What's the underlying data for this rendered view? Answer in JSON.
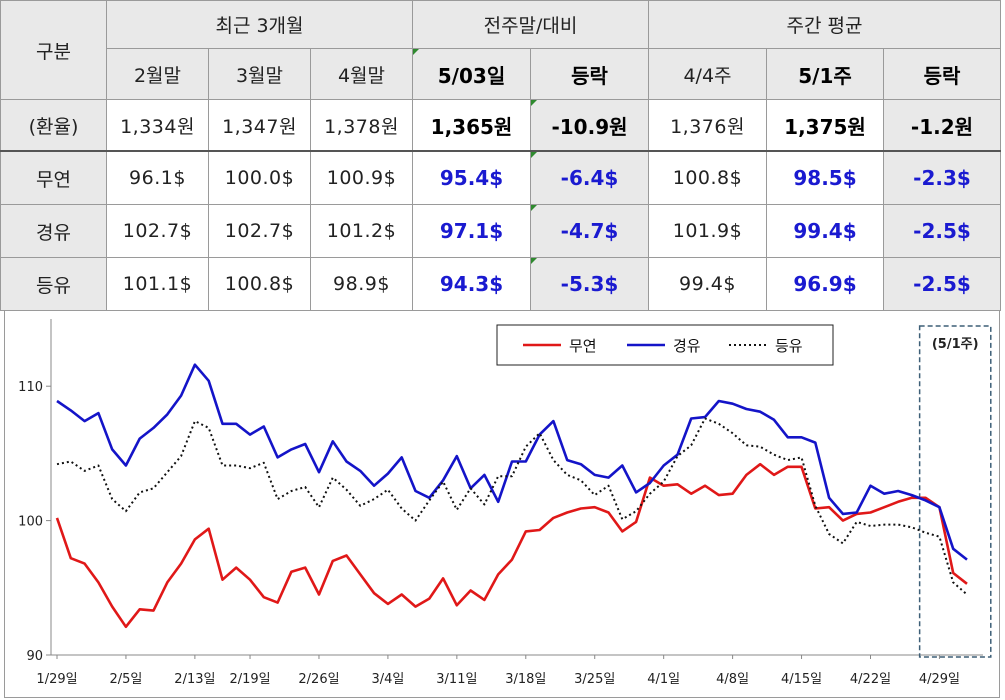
{
  "table": {
    "header_groups": {
      "recent3": "최근 3개월",
      "prev_week": "전주말/대비",
      "weekly_avg": "주간 평균"
    },
    "col_heads": {
      "category": "구분",
      "feb": "2월말",
      "mar": "3월말",
      "apr": "4월말",
      "d0503": "5/03일",
      "change1": "등락",
      "w44": "4/4주",
      "w51": "5/1주",
      "change2": "등락"
    },
    "rows": [
      {
        "label": "(환율)",
        "values": [
          "1,334원",
          "1,347원",
          "1,378원",
          "1,365원",
          "-10.9원",
          "1,376원",
          "1,375원",
          "-1.2원"
        ]
      },
      {
        "label": "무연",
        "values": [
          "96.1$",
          "100.0$",
          "100.9$",
          "95.4$",
          "-6.4$",
          "100.8$",
          "98.5$",
          "-2.3$"
        ]
      },
      {
        "label": "경유",
        "values": [
          "102.7$",
          "102.7$",
          "101.2$",
          "97.1$",
          "-4.7$",
          "101.9$",
          "99.4$",
          "-2.5$"
        ]
      },
      {
        "label": "등유",
        "values": [
          "101.1$",
          "100.8$",
          "98.9$",
          "94.3$",
          "-5.3$",
          "99.4$",
          "96.9$",
          "-2.5$"
        ]
      }
    ]
  },
  "chart_data": {
    "type": "line",
    "ylim": [
      90,
      115
    ],
    "yticks": [
      90,
      100,
      110
    ],
    "xticks": [
      "1/29일",
      "2/5일",
      "2/13일",
      "2/19일",
      "2/26일",
      "3/4일",
      "3/11일",
      "3/18일",
      "3/25일",
      "4/1일",
      "4/8일",
      "4/15일",
      "4/22일",
      "4/29일"
    ],
    "xtick_index": [
      0,
      5,
      10,
      14,
      19,
      24,
      29,
      34,
      39,
      44,
      49,
      54,
      59,
      64
    ],
    "highlight": {
      "label": "(5/1주)",
      "from_index": 63,
      "to_index": 67
    },
    "legend_position": "top-right",
    "series": [
      {
        "name": "무연",
        "color": "#e01818",
        "style": "solid",
        "values": [
          100.2,
          97.2,
          96.8,
          95.4,
          93.6,
          92.1,
          93.4,
          93.3,
          95.4,
          96.8,
          98.6,
          99.4,
          95.6,
          96.5,
          95.6,
          94.3,
          93.9,
          96.2,
          96.5,
          94.5,
          97.0,
          97.4,
          96.0,
          94.6,
          93.8,
          94.5,
          93.6,
          94.2,
          95.7,
          93.7,
          94.8,
          94.1,
          96.0,
          97.1,
          99.2,
          99.3,
          100.2,
          100.6,
          100.9,
          101.0,
          100.6,
          99.2,
          99.9,
          103.2,
          102.6,
          102.7,
          102.0,
          102.6,
          101.9,
          102.0,
          103.4,
          104.2,
          103.4,
          104.0,
          104.0,
          100.9,
          101.0,
          100.0,
          100.5,
          100.6,
          101.0,
          101.4,
          101.7,
          101.7,
          101.0,
          96.1,
          95.3
        ]
      },
      {
        "name": "경유",
        "color": "#1414c8",
        "style": "solid",
        "values": [
          108.9,
          108.2,
          107.4,
          108.0,
          105.3,
          104.1,
          106.1,
          106.9,
          107.9,
          109.3,
          111.6,
          110.4,
          107.2,
          107.2,
          106.4,
          107.0,
          104.7,
          105.3,
          105.7,
          103.6,
          105.9,
          104.4,
          103.7,
          102.6,
          103.5,
          104.7,
          102.2,
          101.7,
          103.0,
          104.8,
          102.4,
          103.4,
          101.4,
          104.4,
          104.4,
          106.4,
          107.4,
          104.5,
          104.2,
          103.4,
          103.2,
          104.1,
          102.1,
          102.8,
          104.1,
          104.9,
          107.6,
          107.7,
          108.9,
          108.7,
          108.3,
          108.1,
          107.5,
          106.2,
          106.2,
          105.8,
          101.7,
          100.5,
          100.6,
          102.6,
          102.0,
          102.2,
          101.9,
          101.5,
          101.0,
          97.9,
          97.1
        ]
      },
      {
        "name": "등유",
        "color": "#111111",
        "style": "dotted",
        "values": [
          104.2,
          104.4,
          103.7,
          104.1,
          101.6,
          100.7,
          102.1,
          102.4,
          103.6,
          104.8,
          107.4,
          106.9,
          104.1,
          104.1,
          103.9,
          104.3,
          101.6,
          102.2,
          102.5,
          101.0,
          103.2,
          102.3,
          101.1,
          101.6,
          102.3,
          100.9,
          100.0,
          101.5,
          102.9,
          100.8,
          102.4,
          101.2,
          103.3,
          103.3,
          105.5,
          106.5,
          104.5,
          103.4,
          103.0,
          101.9,
          102.6,
          100.1,
          100.7,
          102.0,
          102.9,
          104.8,
          105.6,
          107.6,
          107.2,
          106.5,
          105.6,
          105.5,
          104.9,
          104.5,
          104.7,
          101.1,
          99.0,
          98.3,
          99.9,
          99.6,
          99.7,
          99.7,
          99.5,
          99.1,
          98.8,
          95.4,
          94.5
        ]
      }
    ]
  }
}
